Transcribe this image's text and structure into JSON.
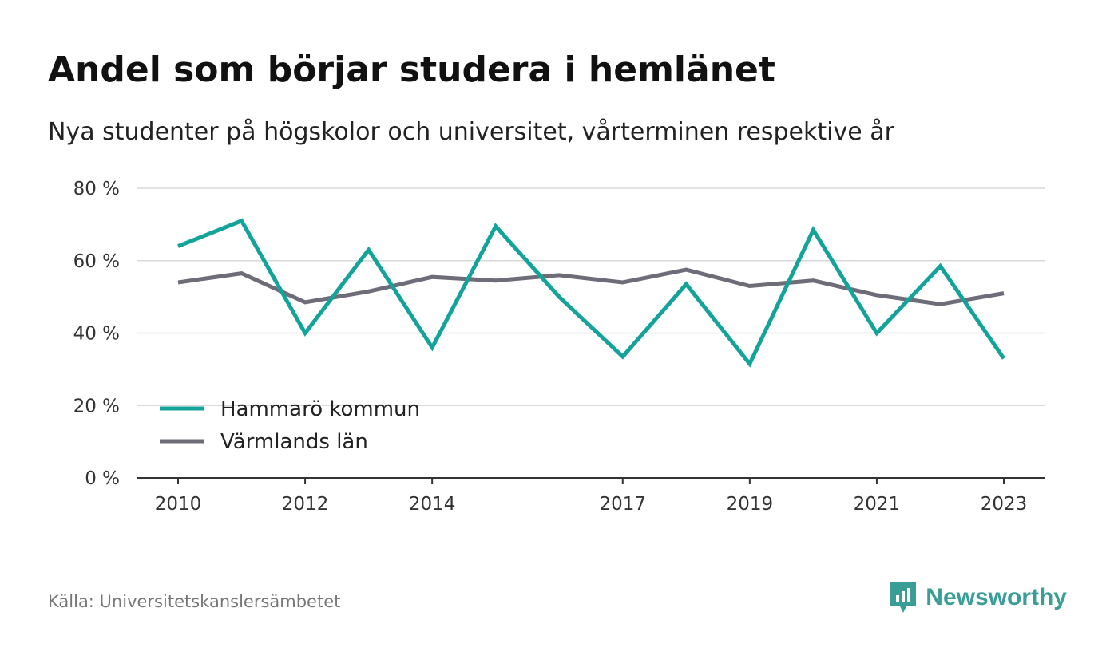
{
  "title": "Andel som börjar studera i hemlänet",
  "subtitle": "Nya studenter på högskolor och universitet, vårterminen respektive år",
  "source": "Källa: Universitetskanslersämbetet",
  "brand": "Newsworthy",
  "colors": {
    "hammaro": "#13a39a",
    "varmland": "#6e6c78",
    "grid": "#d9d9d9",
    "axis": "#333333",
    "brand": "#3a9e96"
  },
  "chart_data": {
    "type": "line",
    "title": "Andel som börjar studera i hemlänet",
    "subtitle": "Nya studenter på högskolor och universitet, vårterminen respektive år",
    "x": [
      2010,
      2011,
      2012,
      2013,
      2014,
      2015,
      2016,
      2017,
      2018,
      2019,
      2020,
      2021,
      2022,
      2023
    ],
    "x_tick_labels": [
      "2010",
      "2012",
      "2014",
      "2017",
      "2019",
      "2021",
      "2023"
    ],
    "y_tick_labels": [
      "0 %",
      "20 %",
      "40 %",
      "60 %",
      "80 %"
    ],
    "y_ticks": [
      0,
      20,
      40,
      60,
      80
    ],
    "ylim": [
      0,
      80
    ],
    "xlim": [
      2010,
      2023
    ],
    "grid": true,
    "legend_position": "bottom-left",
    "series": [
      {
        "name": "Hammarö kommun",
        "color": "#13a39a",
        "values": [
          64,
          71,
          40,
          63,
          36,
          69.5,
          50,
          33.5,
          53.5,
          31.5,
          68.5,
          40,
          58.5,
          33
        ]
      },
      {
        "name": "Värmlands län",
        "color": "#6e6c78",
        "values": [
          54,
          56.5,
          48.5,
          51.5,
          55.5,
          54.5,
          56,
          54,
          57.5,
          53,
          54.5,
          50.5,
          48,
          51
        ]
      }
    ]
  }
}
